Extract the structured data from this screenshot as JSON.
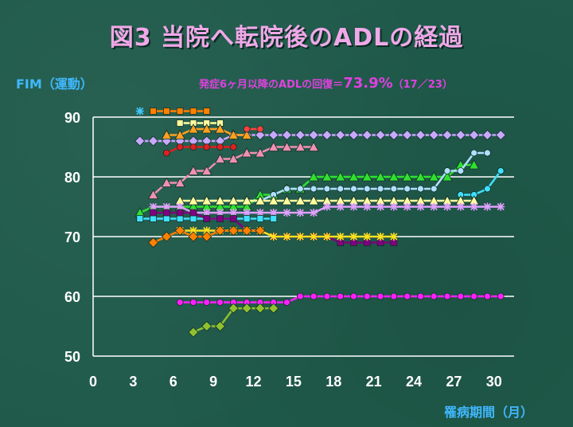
{
  "title": "図3 当院へ転院後のADLの経過",
  "annotation": {
    "prefix": "発症6ヶ月以降のADLの回復＝",
    "percent": "73.9%",
    "count": "（17／23）"
  },
  "chart_data": {
    "type": "line",
    "ylabel": "FIM（運動）",
    "xlabel": "罹病期間（月）",
    "xlim": [
      0,
      31.5
    ],
    "ylim": [
      50,
      90
    ],
    "xticks": [
      0,
      3,
      6,
      9,
      12,
      15,
      18,
      21,
      24,
      27,
      30
    ],
    "yticks": [
      50,
      60,
      70,
      80,
      90
    ],
    "grid": "horizontal",
    "series": [
      {
        "color": "#ff8000",
        "marker": "square",
        "points": [
          [
            4.5,
            91
          ],
          [
            5.5,
            91
          ],
          [
            6.5,
            91
          ],
          [
            7.5,
            91
          ],
          [
            8.5,
            91
          ]
        ]
      },
      {
        "color": "#40c8ff",
        "marker": "asterisk",
        "points": [
          [
            3.5,
            91
          ]
        ]
      },
      {
        "color": "#ffffa0",
        "marker": "square",
        "points": [
          [
            6.5,
            89
          ],
          [
            7.5,
            89
          ],
          [
            8.5,
            89
          ],
          [
            9.5,
            89
          ]
        ]
      },
      {
        "color": "#c8a8ff",
        "marker": "diamond",
        "points": [
          [
            3.5,
            86
          ],
          [
            4.5,
            86
          ],
          [
            5.5,
            86
          ],
          [
            6.5,
            86
          ],
          [
            7.5,
            86
          ],
          [
            8.5,
            86
          ],
          [
            9.5,
            86
          ],
          [
            10.5,
            87
          ],
          [
            11.5,
            87
          ],
          [
            12.5,
            87
          ],
          [
            13.5,
            87
          ],
          [
            14.5,
            87
          ],
          [
            15.5,
            87
          ],
          [
            16.5,
            87
          ],
          [
            17.5,
            87
          ],
          [
            18.5,
            87
          ],
          [
            19.5,
            87
          ],
          [
            20.5,
            87
          ],
          [
            21.5,
            87
          ],
          [
            22.5,
            87
          ],
          [
            23.5,
            87
          ],
          [
            24.5,
            87
          ],
          [
            25.5,
            87
          ],
          [
            26.5,
            87
          ],
          [
            27.5,
            87
          ],
          [
            28.5,
            87
          ],
          [
            29.5,
            87
          ],
          [
            30.5,
            87
          ]
        ]
      },
      {
        "color": "#ffa020",
        "marker": "triangle",
        "points": [
          [
            5.5,
            87
          ],
          [
            6.5,
            87
          ],
          [
            7.5,
            88
          ],
          [
            8.5,
            88
          ],
          [
            9.5,
            88
          ],
          [
            10.5,
            87
          ],
          [
            11.5,
            87
          ]
        ]
      },
      {
        "color": "#ff4040",
        "marker": "circle",
        "points": [
          [
            11.5,
            88
          ],
          [
            12.5,
            88
          ]
        ]
      },
      {
        "color": "#e02020",
        "marker": "circle",
        "points": [
          [
            5.5,
            84
          ],
          [
            6.5,
            85
          ],
          [
            7.5,
            85
          ],
          [
            8.5,
            85
          ],
          [
            9.5,
            85
          ],
          [
            10.5,
            85
          ]
        ]
      },
      {
        "color": "#f090b0",
        "marker": "triangle",
        "points": [
          [
            4.5,
            77
          ],
          [
            5.5,
            79
          ],
          [
            6.5,
            79
          ],
          [
            7.5,
            81
          ],
          [
            8.5,
            81
          ],
          [
            9.5,
            83
          ],
          [
            10.5,
            83
          ],
          [
            11.5,
            84
          ],
          [
            12.5,
            84
          ],
          [
            13.5,
            85
          ],
          [
            14.5,
            85
          ],
          [
            15.5,
            85
          ],
          [
            16.5,
            85
          ]
        ]
      },
      {
        "color": "#30e030",
        "marker": "triangle",
        "points": [
          [
            3.5,
            74
          ],
          [
            4.5,
            75
          ],
          [
            5.5,
            75
          ],
          [
            6.5,
            75
          ],
          [
            7.5,
            75
          ],
          [
            8.5,
            75
          ],
          [
            9.5,
            75
          ],
          [
            10.5,
            75
          ],
          [
            11.5,
            75
          ],
          [
            12.5,
            77
          ],
          [
            13.5,
            77
          ],
          [
            14.5,
            78
          ],
          [
            15.5,
            78
          ],
          [
            16.5,
            80
          ],
          [
            17.5,
            80
          ],
          [
            18.5,
            80
          ],
          [
            19.5,
            80
          ],
          [
            20.5,
            80
          ],
          [
            21.5,
            80
          ],
          [
            22.5,
            80
          ],
          [
            23.5,
            80
          ],
          [
            24.5,
            80
          ],
          [
            25.5,
            80
          ],
          [
            26.5,
            80
          ],
          [
            27.5,
            82
          ],
          [
            28.5,
            82
          ]
        ]
      },
      {
        "color": "#b0e0ff",
        "marker": "circle",
        "points": [
          [
            8.5,
            76
          ],
          [
            9.5,
            76
          ],
          [
            10.5,
            76
          ],
          [
            11.5,
            76
          ],
          [
            12.5,
            76
          ],
          [
            13.5,
            77
          ],
          [
            14.5,
            78
          ],
          [
            15.5,
            78
          ],
          [
            16.5,
            78
          ],
          [
            17.5,
            78
          ],
          [
            18.5,
            78
          ],
          [
            19.5,
            78
          ],
          [
            20.5,
            78
          ],
          [
            21.5,
            78
          ],
          [
            22.5,
            78
          ],
          [
            23.5,
            78
          ],
          [
            24.5,
            78
          ],
          [
            25.5,
            78
          ],
          [
            26.5,
            81
          ],
          [
            27.5,
            81
          ],
          [
            28.5,
            84
          ],
          [
            29.5,
            84
          ]
        ]
      },
      {
        "color": "#40e0ff",
        "marker": "circle",
        "points": [
          [
            27.5,
            77
          ],
          [
            28.5,
            77
          ],
          [
            29.5,
            78
          ],
          [
            30.5,
            81
          ]
        ]
      },
      {
        "color": "#ffffa0",
        "marker": "triangle",
        "points": [
          [
            6.5,
            76
          ],
          [
            7.5,
            76
          ],
          [
            8.5,
            76
          ],
          [
            9.5,
            76
          ],
          [
            10.5,
            76
          ],
          [
            11.5,
            76
          ],
          [
            12.5,
            76
          ],
          [
            13.5,
            76
          ],
          [
            14.5,
            76
          ],
          [
            15.5,
            76
          ],
          [
            16.5,
            76
          ],
          [
            17.5,
            76
          ],
          [
            18.5,
            76
          ],
          [
            19.5,
            76
          ],
          [
            20.5,
            76
          ],
          [
            21.5,
            76
          ],
          [
            22.5,
            76
          ],
          [
            23.5,
            76
          ],
          [
            24.5,
            76
          ],
          [
            25.5,
            76
          ],
          [
            26.5,
            76
          ],
          [
            27.5,
            76
          ],
          [
            28.5,
            76
          ]
        ]
      },
      {
        "color": "#e0a0ff",
        "marker": "asterisk",
        "points": [
          [
            4.5,
            75
          ],
          [
            5.5,
            75
          ],
          [
            6.5,
            75
          ],
          [
            7.5,
            74
          ],
          [
            8.5,
            74
          ],
          [
            9.5,
            74
          ],
          [
            10.5,
            74
          ],
          [
            11.5,
            74
          ],
          [
            12.5,
            74
          ],
          [
            13.5,
            74
          ],
          [
            14.5,
            74
          ],
          [
            15.5,
            74
          ],
          [
            16.5,
            74
          ],
          [
            17.5,
            75
          ],
          [
            18.5,
            75
          ],
          [
            19.5,
            75
          ],
          [
            20.5,
            75
          ],
          [
            21.5,
            75
          ],
          [
            22.5,
            75
          ],
          [
            23.5,
            75
          ],
          [
            24.5,
            75
          ],
          [
            25.5,
            75
          ],
          [
            26.5,
            75
          ],
          [
            27.5,
            75
          ],
          [
            28.5,
            75
          ],
          [
            29.5,
            75
          ],
          [
            30.5,
            75
          ]
        ]
      },
      {
        "color": "#40e0ff",
        "marker": "square",
        "points": [
          [
            3.5,
            73
          ],
          [
            4.5,
            73
          ],
          [
            5.5,
            73
          ],
          [
            6.5,
            73
          ],
          [
            7.5,
            73
          ],
          [
            8.5,
            73
          ],
          [
            9.5,
            73
          ],
          [
            10.5,
            73
          ],
          [
            11.5,
            73
          ],
          [
            12.5,
            73
          ],
          [
            13.5,
            73
          ]
        ]
      },
      {
        "color": "#800080",
        "marker": "square",
        "points": [
          [
            4.5,
            74
          ],
          [
            5.5,
            74
          ],
          [
            6.5,
            74
          ],
          [
            7.5,
            74
          ],
          [
            8.5,
            73
          ],
          [
            9.5,
            73
          ],
          [
            10.5,
            73
          ],
          [
            11.5,
            71
          ],
          [
            12.5,
            71
          ],
          [
            13.5,
            70
          ],
          [
            14.5,
            70
          ],
          [
            15.5,
            70
          ],
          [
            16.5,
            70
          ],
          [
            17.5,
            70
          ],
          [
            18.5,
            69
          ],
          [
            19.5,
            69
          ],
          [
            20.5,
            69
          ],
          [
            21.5,
            69
          ],
          [
            22.5,
            69
          ]
        ]
      },
      {
        "color": "#ffe020",
        "marker": "asterisk",
        "points": [
          [
            6.5,
            71
          ],
          [
            7.5,
            71
          ],
          [
            8.5,
            71
          ],
          [
            9.5,
            71
          ],
          [
            10.5,
            71
          ],
          [
            11.5,
            71
          ],
          [
            12.5,
            71
          ],
          [
            13.5,
            70
          ],
          [
            14.5,
            70
          ],
          [
            15.5,
            70
          ],
          [
            16.5,
            70
          ],
          [
            17.5,
            70
          ],
          [
            18.5,
            70
          ],
          [
            19.5,
            70
          ],
          [
            20.5,
            70
          ],
          [
            21.5,
            70
          ],
          [
            22.5,
            70
          ]
        ]
      },
      {
        "color": "#ff8000",
        "marker": "diamond",
        "points": [
          [
            4.5,
            69
          ],
          [
            5.5,
            70
          ],
          [
            6.5,
            71
          ],
          [
            7.5,
            70
          ],
          [
            8.5,
            70
          ],
          [
            9.5,
            71
          ],
          [
            10.5,
            71
          ],
          [
            11.5,
            71
          ],
          [
            12.5,
            71
          ]
        ]
      },
      {
        "color": "#ff20ff",
        "marker": "circle",
        "points": [
          [
            6.5,
            59
          ],
          [
            7.5,
            59
          ],
          [
            8.5,
            59
          ],
          [
            9.5,
            59
          ],
          [
            10.5,
            59
          ],
          [
            11.5,
            59
          ],
          [
            12.5,
            59
          ],
          [
            13.5,
            59
          ],
          [
            14.5,
            59
          ],
          [
            15.5,
            60
          ],
          [
            16.5,
            60
          ],
          [
            17.5,
            60
          ],
          [
            18.5,
            60
          ],
          [
            19.5,
            60
          ],
          [
            20.5,
            60
          ],
          [
            21.5,
            60
          ],
          [
            22.5,
            60
          ],
          [
            23.5,
            60
          ],
          [
            24.5,
            60
          ],
          [
            25.5,
            60
          ],
          [
            26.5,
            60
          ],
          [
            27.5,
            60
          ],
          [
            28.5,
            60
          ],
          [
            29.5,
            60
          ],
          [
            30.5,
            60
          ]
        ]
      },
      {
        "color": "#90c030",
        "marker": "diamond",
        "points": [
          [
            7.5,
            54
          ],
          [
            8.5,
            55
          ],
          [
            9.5,
            55
          ],
          [
            10.5,
            58
          ],
          [
            11.5,
            58
          ],
          [
            12.5,
            58
          ],
          [
            13.5,
            58
          ]
        ]
      }
    ]
  }
}
